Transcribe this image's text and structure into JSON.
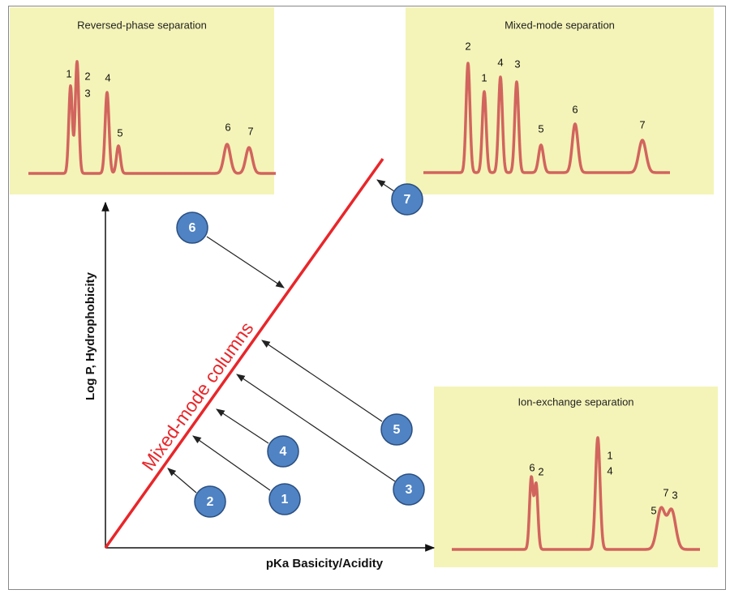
{
  "axes": {
    "y_label": "Log P, Hydrophobicity",
    "x_label": "pKa Basicity/Acidity"
  },
  "diagonal_label": "Mixed-mode columns",
  "panels": [
    {
      "title": "Reversed-phase separation",
      "peak_labels": [
        "1",
        "2",
        "3",
        "4",
        "5",
        "6",
        "7"
      ]
    },
    {
      "title": "Mixed-mode separation",
      "peak_labels": [
        "2",
        "1",
        "4",
        "3",
        "5",
        "6",
        "7"
      ]
    },
    {
      "title": "Ion-exchange separation",
      "peak_labels": [
        "6",
        "2",
        "1",
        "4",
        "5",
        "7",
        "3"
      ]
    }
  ],
  "markers": [
    "6",
    "7",
    "5",
    "4",
    "3",
    "2",
    "1"
  ]
}
